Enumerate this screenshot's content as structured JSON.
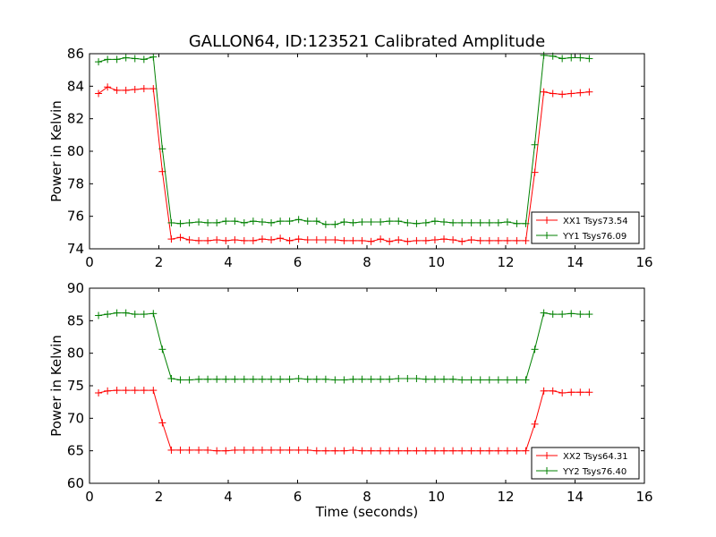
{
  "title": "GALLON64, ID:123521 Calibrated Amplitude",
  "chart_data": [
    {
      "type": "line",
      "ylabel": "Power in Kelvin",
      "xlabel": "",
      "xlim": [
        0,
        16
      ],
      "ylim": [
        74,
        86
      ],
      "xticks": [
        0,
        2,
        4,
        6,
        8,
        10,
        12,
        14,
        16
      ],
      "yticks": [
        74,
        76,
        78,
        80,
        82,
        84,
        86
      ],
      "legend_position": "lower-right",
      "series": [
        {
          "name": "XX1 Tsys73.54",
          "color": "#ff0000",
          "x": [
            0.26,
            0.52,
            0.79,
            1.05,
            1.31,
            1.57,
            1.84,
            2.1,
            2.36,
            2.62,
            2.88,
            3.15,
            3.41,
            3.67,
            3.93,
            4.19,
            4.46,
            4.72,
            4.98,
            5.24,
            5.5,
            5.77,
            6.03,
            6.29,
            6.55,
            6.81,
            7.08,
            7.34,
            7.6,
            7.86,
            8.12,
            8.39,
            8.65,
            8.91,
            9.17,
            9.43,
            9.7,
            9.96,
            10.22,
            10.48,
            10.74,
            11.01,
            11.27,
            11.53,
            11.79,
            12.05,
            12.32,
            12.58,
            12.84,
            13.1,
            13.36,
            13.63,
            13.89,
            14.15,
            14.41
          ],
          "y": [
            83.55,
            83.95,
            83.75,
            83.75,
            83.8,
            83.85,
            83.85,
            78.75,
            74.6,
            74.7,
            74.55,
            74.5,
            74.5,
            74.55,
            74.5,
            74.55,
            74.5,
            74.5,
            74.6,
            74.55,
            74.65,
            74.5,
            74.6,
            74.55,
            74.55,
            74.55,
            74.55,
            74.5,
            74.5,
            74.5,
            74.45,
            74.6,
            74.45,
            74.55,
            74.45,
            74.5,
            74.5,
            74.55,
            74.6,
            74.55,
            74.45,
            74.55,
            74.5,
            74.5,
            74.5,
            74.5,
            74.5,
            74.5,
            78.7,
            83.65,
            83.55,
            83.5,
            83.55,
            83.6,
            83.65
          ]
        },
        {
          "name": "YY1 Tsys76.09",
          "color": "#008000",
          "x": [
            0.26,
            0.52,
            0.79,
            1.05,
            1.31,
            1.57,
            1.84,
            2.1,
            2.36,
            2.62,
            2.88,
            3.15,
            3.41,
            3.67,
            3.93,
            4.19,
            4.46,
            4.72,
            4.98,
            5.24,
            5.5,
            5.77,
            6.03,
            6.29,
            6.55,
            6.81,
            7.08,
            7.34,
            7.6,
            7.86,
            8.12,
            8.39,
            8.65,
            8.91,
            9.17,
            9.43,
            9.7,
            9.96,
            10.22,
            10.48,
            10.74,
            11.01,
            11.27,
            11.53,
            11.79,
            12.05,
            12.32,
            12.58,
            12.84,
            13.1,
            13.36,
            13.63,
            13.89,
            14.15,
            14.41
          ],
          "y": [
            85.5,
            85.65,
            85.65,
            85.75,
            85.7,
            85.65,
            85.8,
            80.15,
            75.6,
            75.55,
            75.6,
            75.65,
            75.6,
            75.6,
            75.7,
            75.7,
            75.6,
            75.7,
            75.65,
            75.6,
            75.7,
            75.7,
            75.8,
            75.7,
            75.7,
            75.5,
            75.5,
            75.65,
            75.6,
            75.65,
            75.65,
            75.65,
            75.7,
            75.7,
            75.6,
            75.55,
            75.6,
            75.7,
            75.65,
            75.6,
            75.6,
            75.6,
            75.6,
            75.6,
            75.6,
            75.65,
            75.55,
            75.55,
            80.4,
            85.9,
            85.85,
            85.7,
            85.75,
            85.75,
            85.7
          ]
        }
      ]
    },
    {
      "type": "line",
      "ylabel": "Power in Kelvin",
      "xlabel": "Time (seconds)",
      "xlim": [
        0,
        16
      ],
      "ylim": [
        60,
        90
      ],
      "xticks": [
        0,
        2,
        4,
        6,
        8,
        10,
        12,
        14,
        16
      ],
      "yticks": [
        60,
        65,
        70,
        75,
        80,
        85,
        90
      ],
      "legend_position": "lower-right",
      "series": [
        {
          "name": "XX2 Tsys64.31",
          "color": "#ff0000",
          "x": [
            0.26,
            0.52,
            0.79,
            1.05,
            1.31,
            1.57,
            1.84,
            2.1,
            2.36,
            2.62,
            2.88,
            3.15,
            3.41,
            3.67,
            3.93,
            4.19,
            4.46,
            4.72,
            4.98,
            5.24,
            5.5,
            5.77,
            6.03,
            6.29,
            6.55,
            6.81,
            7.08,
            7.34,
            7.6,
            7.86,
            8.12,
            8.39,
            8.65,
            8.91,
            9.17,
            9.43,
            9.7,
            9.96,
            10.22,
            10.48,
            10.74,
            11.01,
            11.27,
            11.53,
            11.79,
            12.05,
            12.32,
            12.58,
            12.84,
            13.1,
            13.36,
            13.63,
            13.89,
            14.15,
            14.41
          ],
          "y": [
            73.9,
            74.2,
            74.3,
            74.3,
            74.3,
            74.3,
            74.3,
            69.3,
            65.1,
            65.1,
            65.1,
            65.1,
            65.1,
            65.0,
            65.0,
            65.1,
            65.1,
            65.1,
            65.1,
            65.1,
            65.1,
            65.1,
            65.1,
            65.1,
            65.0,
            65.0,
            65.0,
            65.0,
            65.1,
            65.0,
            65.0,
            65.0,
            65.0,
            65.0,
            65.0,
            65.0,
            65.0,
            65.0,
            65.0,
            65.0,
            65.0,
            65.0,
            65.0,
            65.0,
            65.0,
            65.0,
            65.0,
            65.0,
            69.1,
            74.2,
            74.2,
            73.9,
            74.0,
            74.0,
            74.0
          ]
        },
        {
          "name": "YY2 Tsys76.40",
          "color": "#008000",
          "x": [
            0.26,
            0.52,
            0.79,
            1.05,
            1.31,
            1.57,
            1.84,
            2.1,
            2.36,
            2.62,
            2.88,
            3.15,
            3.41,
            3.67,
            3.93,
            4.19,
            4.46,
            4.72,
            4.98,
            5.24,
            5.5,
            5.77,
            6.03,
            6.29,
            6.55,
            6.81,
            7.08,
            7.34,
            7.6,
            7.86,
            8.12,
            8.39,
            8.65,
            8.91,
            9.17,
            9.43,
            9.7,
            9.96,
            10.22,
            10.48,
            10.74,
            11.01,
            11.27,
            11.53,
            11.79,
            12.05,
            12.32,
            12.58,
            12.84,
            13.1,
            13.36,
            13.63,
            13.89,
            14.15,
            14.41
          ],
          "y": [
            85.8,
            86.0,
            86.2,
            86.2,
            86.0,
            86.0,
            86.1,
            80.6,
            76.1,
            75.9,
            75.9,
            76.0,
            76.0,
            76.0,
            76.0,
            76.0,
            76.0,
            76.0,
            76.0,
            76.0,
            76.0,
            76.0,
            76.1,
            76.0,
            76.0,
            76.0,
            75.9,
            75.9,
            76.0,
            76.0,
            76.0,
            76.0,
            76.0,
            76.1,
            76.1,
            76.1,
            76.0,
            76.0,
            76.0,
            76.0,
            75.9,
            75.9,
            75.9,
            75.9,
            75.9,
            75.9,
            75.9,
            75.9,
            80.6,
            86.2,
            86.0,
            86.0,
            86.1,
            86.0,
            86.0
          ]
        }
      ]
    }
  ]
}
